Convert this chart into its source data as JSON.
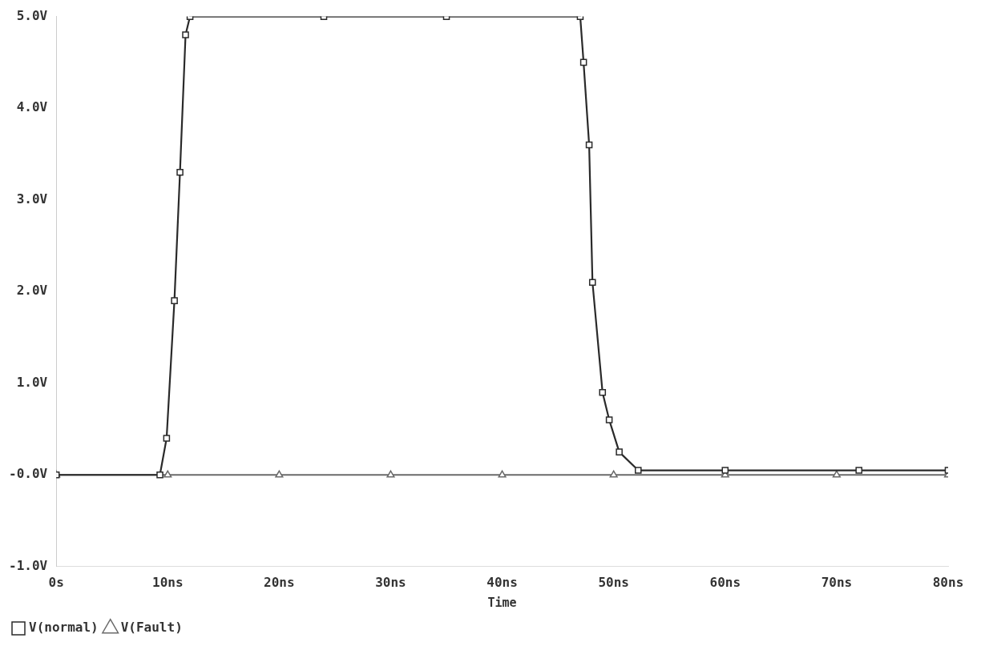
{
  "chart_data": {
    "type": "line",
    "xlabel": "Time",
    "x": [
      0,
      9.3,
      9.9,
      10.6,
      11.1,
      11.6,
      12.0,
      24,
      35,
      47.0,
      47.3,
      47.8,
      48.1,
      49.0,
      49.6,
      50.5,
      52.2,
      60,
      72,
      80
    ],
    "series": [
      {
        "name": "V(normal)",
        "color": "#2a2a2a",
        "marker": "square",
        "values": [
          0,
          0,
          0.4,
          1.9,
          3.3,
          4.8,
          5.0,
          5.0,
          5.0,
          5.0,
          4.5,
          3.6,
          2.1,
          0.9,
          0.6,
          0.25,
          0.05,
          0.05,
          0.05,
          0.05
        ]
      },
      {
        "name": "V(Fault)",
        "color": "#6a6a6a",
        "marker": "triangle",
        "x": [
          0,
          10,
          20,
          30,
          40,
          50,
          60,
          70,
          80
        ],
        "values": [
          0,
          0,
          0,
          0,
          0,
          0,
          0,
          0,
          0
        ]
      }
    ],
    "xlim": [
      0,
      80
    ],
    "xticks": [
      {
        "value": 0,
        "label": "0s"
      },
      {
        "value": 10,
        "label": "10ns"
      },
      {
        "value": 20,
        "label": "20ns"
      },
      {
        "value": 30,
        "label": "30ns"
      },
      {
        "value": 40,
        "label": "40ns"
      },
      {
        "value": 50,
        "label": "50ns"
      },
      {
        "value": 60,
        "label": "60ns"
      },
      {
        "value": 70,
        "label": "70ns"
      },
      {
        "value": 80,
        "label": "80ns"
      }
    ],
    "ylim": [
      -1,
      5
    ],
    "yticks": [
      {
        "value": -1,
        "label": "-1.0V"
      },
      {
        "value": 0,
        "label": "-0.0V"
      },
      {
        "value": 1,
        "label": "1.0V"
      },
      {
        "value": 2,
        "label": "2.0V"
      },
      {
        "value": 3,
        "label": "3.0V"
      },
      {
        "value": 4,
        "label": "4.0V"
      },
      {
        "value": 5,
        "label": "5.0V"
      }
    ],
    "grid": false,
    "legend": "bottom left",
    "line_style": "solid"
  }
}
